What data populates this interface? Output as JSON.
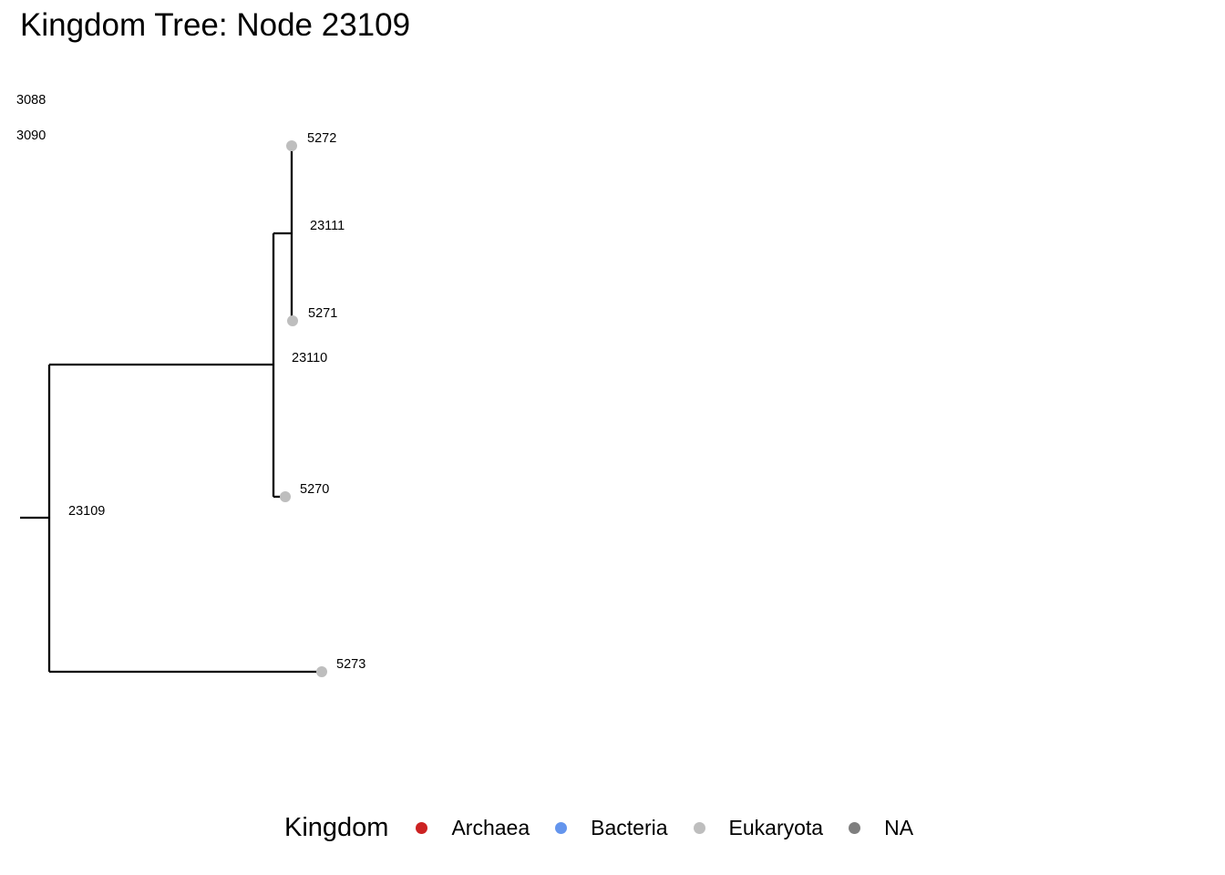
{
  "title": "Kingdom Tree: Node 23109",
  "legend": {
    "title": "Kingdom",
    "items": [
      {
        "label": "Archaea",
        "color": "#cc2222"
      },
      {
        "label": "Bacteria",
        "color": "#6495ed"
      },
      {
        "label": "Eukaryota",
        "color": "#bebebe"
      },
      {
        "label": "NA",
        "color": "#7f7f7f"
      }
    ]
  },
  "tree": {
    "clipped_labels": [
      "3088",
      "3090"
    ],
    "nodes": [
      {
        "id": "23109",
        "type": "internal"
      },
      {
        "id": "23110",
        "type": "internal"
      },
      {
        "id": "23111",
        "type": "internal"
      },
      {
        "id": "5272",
        "type": "tip",
        "kingdom": "Eukaryota"
      },
      {
        "id": "5271",
        "type": "tip",
        "kingdom": "Eukaryota"
      },
      {
        "id": "5270",
        "type": "tip",
        "kingdom": "Eukaryota"
      },
      {
        "id": "5273",
        "type": "tip",
        "kingdom": "Eukaryota"
      }
    ],
    "edges": [
      [
        "23109",
        "23110"
      ],
      [
        "23109",
        "5273"
      ],
      [
        "23110",
        "23111"
      ],
      [
        "23110",
        "5270"
      ],
      [
        "23111",
        "5272"
      ],
      [
        "23111",
        "5271"
      ]
    ]
  }
}
